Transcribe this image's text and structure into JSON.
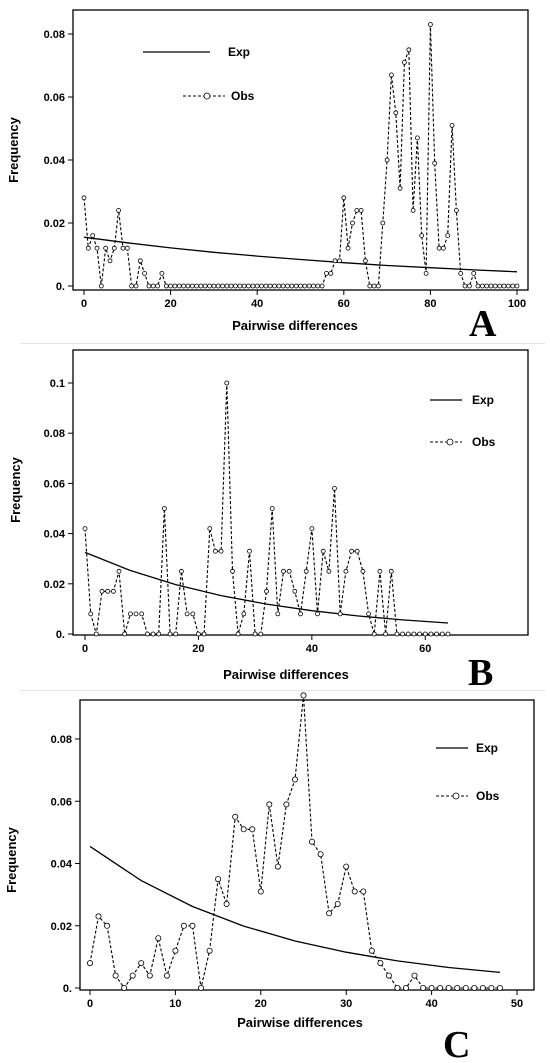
{
  "chart_data": [
    {
      "type": "line",
      "panel": "A",
      "xlabel": "Pairwise differences",
      "ylabel": "Frequency",
      "xlim": [
        0,
        100
      ],
      "ylim": [
        0,
        0.085
      ],
      "xticks": [
        0,
        20,
        40,
        60,
        80,
        100
      ],
      "xtick_labels": [
        "0",
        "20",
        "40",
        "60",
        "80",
        "100"
      ],
      "yticks": [
        0,
        0.02,
        0.04,
        0.06,
        0.08
      ],
      "ytick_labels": [
        "0.",
        "0.02",
        "0.04",
        "0.06",
        "0.08"
      ],
      "legend": {
        "position": "top-left",
        "entries": [
          "Exp",
          "Obs"
        ]
      },
      "series": [
        {
          "name": "Exp",
          "style": "solid",
          "x": [
            0,
            10,
            20,
            30,
            40,
            50,
            60,
            70,
            80,
            90,
            100
          ],
          "y": [
            0.0155,
            0.0137,
            0.0121,
            0.0107,
            0.0095,
            0.0084,
            0.0074,
            0.0065,
            0.0058,
            0.0051,
            0.0045
          ]
        },
        {
          "name": "Obs",
          "style": "dashed-markers",
          "x": [
            0,
            1,
            2,
            3,
            4,
            5,
            6,
            7,
            8,
            9,
            10,
            11,
            12,
            13,
            14,
            15,
            16,
            17,
            18,
            19,
            20,
            21,
            22,
            23,
            24,
            25,
            26,
            27,
            28,
            29,
            30,
            31,
            32,
            33,
            34,
            35,
            36,
            37,
            38,
            39,
            40,
            41,
            42,
            43,
            44,
            45,
            46,
            47,
            48,
            49,
            50,
            51,
            52,
            53,
            54,
            55,
            56,
            57,
            58,
            59,
            60,
            61,
            62,
            63,
            64,
            65,
            66,
            67,
            68,
            69,
            70,
            71,
            72,
            73,
            74,
            75,
            76,
            77,
            78,
            79,
            80,
            81,
            82,
            83,
            84,
            85,
            86,
            87,
            88,
            89,
            90,
            91,
            92,
            93,
            94,
            95,
            96,
            97,
            98,
            99,
            100
          ],
          "y": [
            0.028,
            0.012,
            0.016,
            0.012,
            0,
            0.012,
            0.008,
            0.012,
            0.024,
            0.012,
            0.012,
            0,
            0,
            0.008,
            0.004,
            0,
            0,
            0,
            0.004,
            0,
            0,
            0,
            0,
            0,
            0,
            0,
            0,
            0,
            0,
            0,
            0,
            0,
            0,
            0,
            0,
            0,
            0,
            0,
            0,
            0,
            0,
            0,
            0,
            0,
            0,
            0,
            0,
            0,
            0,
            0,
            0,
            0,
            0,
            0,
            0,
            0,
            0.004,
            0.004,
            0.008,
            0.008,
            0.028,
            0.012,
            0.02,
            0.024,
            0.024,
            0.008,
            0,
            0,
            0,
            0.02,
            0.04,
            0.067,
            0.055,
            0.031,
            0.071,
            0.075,
            0.024,
            0.047,
            0.016,
            0.004,
            0.083,
            0.039,
            0.012,
            0.012,
            0.016,
            0.051,
            0.024,
            0.004,
            0,
            0,
            0.004,
            0,
            0,
            0,
            0,
            0,
            0,
            0,
            0,
            0,
            0
          ]
        }
      ],
      "annotation": "A"
    },
    {
      "type": "line",
      "panel": "B",
      "xlabel": "Pairwise differences",
      "ylabel": "Frequency",
      "xlim": [
        0,
        70
      ],
      "ylim": [
        0,
        0.1
      ],
      "xticks": [
        0,
        20,
        40,
        60
      ],
      "xtick_labels": [
        "0",
        "20",
        "40",
        "60"
      ],
      "yticks": [
        0,
        0.02,
        0.04,
        0.06,
        0.08,
        0.1
      ],
      "ytick_labels": [
        "0.",
        "0.02",
        "0.04",
        "0.06",
        "0.08",
        "0.1"
      ],
      "legend": {
        "position": "top-right",
        "entries": [
          "Exp",
          "Obs"
        ]
      },
      "series": [
        {
          "name": "Exp",
          "style": "solid",
          "x": [
            0,
            8,
            16,
            24,
            32,
            40,
            48,
            56,
            64
          ],
          "y": [
            0.0325,
            0.0253,
            0.0197,
            0.0153,
            0.0119,
            0.0093,
            0.0072,
            0.0056,
            0.0044
          ]
        },
        {
          "name": "Obs",
          "style": "dashed-markers",
          "x": [
            0,
            1,
            2,
            3,
            4,
            5,
            6,
            7,
            8,
            9,
            10,
            11,
            12,
            13,
            14,
            15,
            16,
            17,
            18,
            19,
            20,
            21,
            22,
            23,
            24,
            25,
            26,
            27,
            28,
            29,
            30,
            31,
            32,
            33,
            34,
            35,
            36,
            37,
            38,
            39,
            40,
            41,
            42,
            43,
            44,
            45,
            46,
            47,
            48,
            49,
            50,
            51,
            52,
            53,
            54,
            55,
            56,
            57,
            58,
            59,
            60,
            61,
            62,
            63,
            64
          ],
          "y": [
            0.042,
            0.008,
            0,
            0.017,
            0.017,
            0.017,
            0.025,
            0,
            0.008,
            0.008,
            0.008,
            0,
            0,
            0,
            0.05,
            0,
            0,
            0.025,
            0.008,
            0.008,
            0,
            0,
            0.042,
            0.033,
            0.033,
            0.1,
            0.025,
            0,
            0.008,
            0.033,
            0,
            0,
            0.017,
            0.05,
            0.008,
            0.025,
            0.025,
            0.017,
            0.008,
            0.025,
            0.042,
            0.008,
            0.033,
            0.025,
            0.058,
            0.008,
            0.025,
            0.033,
            0.033,
            0.025,
            0.008,
            0,
            0.025,
            0,
            0.025,
            0,
            0,
            0,
            0,
            0,
            0,
            0,
            0,
            0,
            0
          ]
        }
      ],
      "annotation": "B"
    },
    {
      "type": "line",
      "panel": "C",
      "xlabel": "Pairwise differences",
      "ylabel": "Frequency",
      "xlim": [
        0,
        50
      ],
      "ylim": [
        0,
        0.097
      ],
      "xticks": [
        0,
        10,
        20,
        30,
        40,
        50
      ],
      "xtick_labels": [
        "0",
        "10",
        "20",
        "30",
        "40",
        "50"
      ],
      "yticks": [
        0,
        0.02,
        0.04,
        0.06,
        0.08
      ],
      "ytick_labels": [
        "0.",
        "0.02",
        "0.04",
        "0.06",
        "0.08"
      ],
      "legend": {
        "position": "top-right",
        "entries": [
          "Exp",
          "Obs"
        ]
      },
      "series": [
        {
          "name": "Exp",
          "style": "solid",
          "x": [
            0,
            6,
            12,
            18,
            24,
            30,
            36,
            42,
            48
          ],
          "y": [
            0.0455,
            0.0345,
            0.0262,
            0.0199,
            0.0151,
            0.0115,
            0.0087,
            0.0066,
            0.005
          ]
        },
        {
          "name": "Obs",
          "style": "dashed-markers",
          "x": [
            0,
            1,
            2,
            3,
            4,
            5,
            6,
            7,
            8,
            9,
            10,
            11,
            12,
            13,
            14,
            15,
            16,
            17,
            18,
            19,
            20,
            21,
            22,
            23,
            24,
            25,
            26,
            27,
            28,
            29,
            30,
            31,
            32,
            33,
            34,
            35,
            36,
            37,
            38,
            39,
            40,
            41,
            42,
            43,
            44,
            45,
            46,
            47,
            48
          ],
          "y": [
            0.008,
            0.023,
            0.02,
            0.004,
            0,
            0.004,
            0.008,
            0.004,
            0.016,
            0.004,
            0.012,
            0.02,
            0.02,
            0,
            0.012,
            0.035,
            0.027,
            0.055,
            0.051,
            0.051,
            0.031,
            0.059,
            0.039,
            0.059,
            0.067,
            0.094,
            0.047,
            0.043,
            0.024,
            0.027,
            0.039,
            0.031,
            0.031,
            0.012,
            0.008,
            0.004,
            0,
            0,
            0.004,
            0,
            0,
            0,
            0,
            0,
            0,
            0,
            0,
            0,
            0
          ]
        }
      ],
      "annotation": "C"
    }
  ]
}
